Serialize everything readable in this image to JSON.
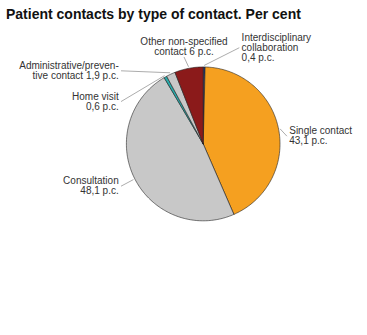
{
  "chart_data": {
    "type": "pie",
    "title": "Patient contacts by type of contact. Per cent",
    "categories": [
      "Interdisciplinary\ncollaboration\n0,4 p.c.",
      "Single contact\n43,1 p.c.",
      "Consultation\n48,1 p.c.",
      "Home visit\n0,6 p.c.",
      "Administrative/preven-\ntive contact 1,9 p.c.",
      "Other non-specified\ncontact 6 p.c."
    ],
    "values": [
      0.4,
      43.1,
      48.1,
      0.6,
      1.9,
      6
    ],
    "colors": [
      "#1a3a8a",
      "#f5a020",
      "#c8c8c8",
      "#2aacac",
      "#c8c8c8",
      "#8b1a1a"
    ]
  }
}
